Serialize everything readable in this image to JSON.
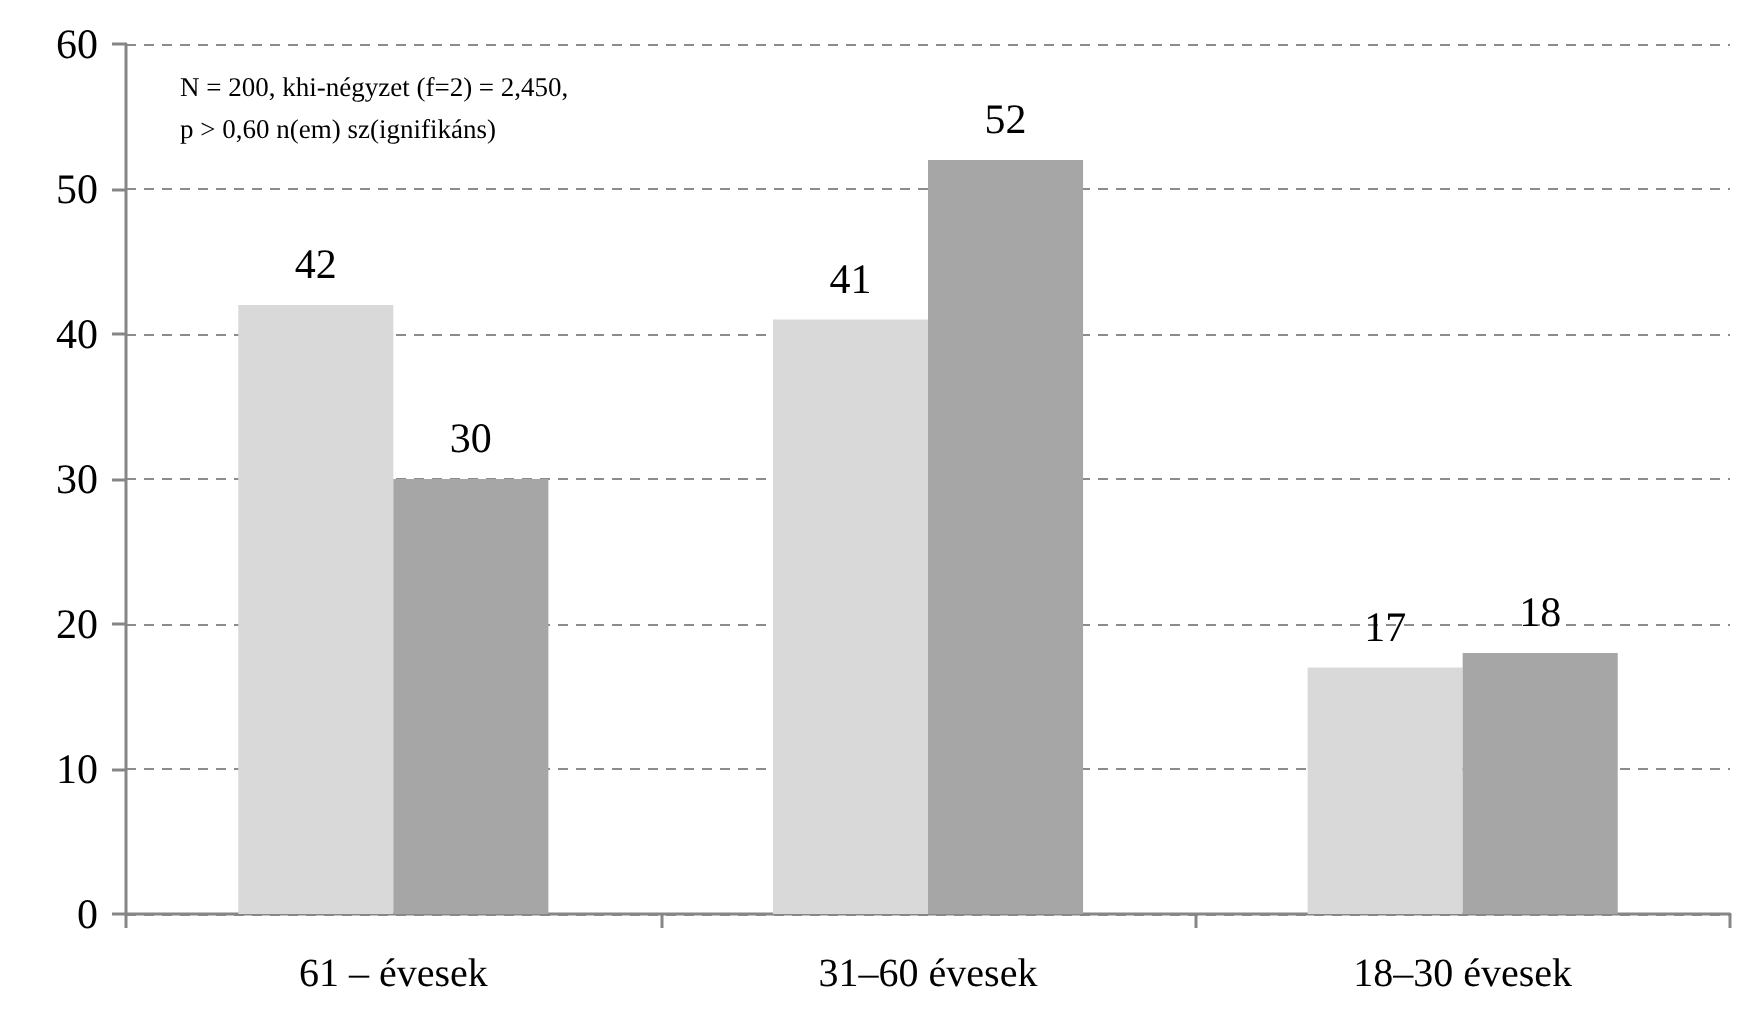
{
  "chart_data": {
    "type": "bar",
    "categories": [
      "61 – évesek",
      "31–60 évesek",
      "18–30 évesek"
    ],
    "series": [
      {
        "color": "#d9d9d9",
        "values": [
          42,
          41,
          17
        ]
      },
      {
        "color": "#a6a6a6",
        "values": [
          30,
          52,
          18
        ]
      }
    ],
    "ylim": [
      0,
      60
    ],
    "yticks": [
      0,
      10,
      20,
      30,
      40,
      50,
      60
    ],
    "grid": "y",
    "data_labels": true,
    "annotations": [
      "N = 200, khi-négyzet (f=2) = 2,450,\np > 0,60 n(em) sz(ignifikáns)"
    ]
  }
}
